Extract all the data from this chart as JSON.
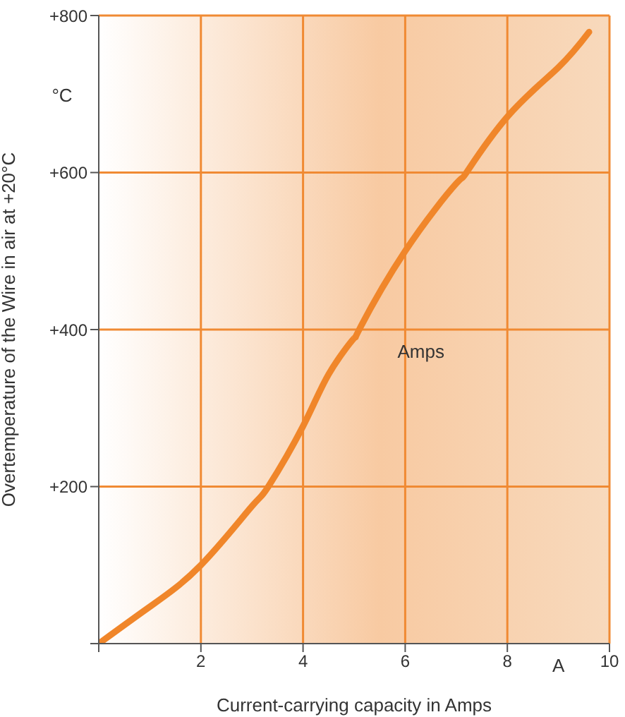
{
  "chart_data": {
    "type": "line",
    "xlabel": "Current-carrying capacity in Amps",
    "ylabel": "Overtemperature of the Wire in air at +20°C",
    "annotations": [
      "°C",
      "Amps",
      "A"
    ],
    "x": [
      0,
      1,
      2,
      3,
      3.32,
      4,
      4.5,
      5,
      5.1,
      6,
      7,
      7.2,
      8,
      9,
      9.6
    ],
    "series": [
      {
        "color": "#f0862a",
        "values": [
          0,
          47,
          100,
          175,
          200,
          277,
          343,
          389,
          400,
          500,
          586,
          600,
          671,
          734,
          779
        ]
      }
    ],
    "xlim": [
      0,
      10
    ],
    "xticks": [
      {
        "value": 0,
        "label": null
      },
      2,
      4,
      6,
      8,
      10
    ],
    "ylim": [
      0,
      800
    ],
    "yticks": [
      {
        "value": 0,
        "label": null
      },
      {
        "value": 200,
        "label": "+200"
      },
      {
        "value": 400,
        "label": "+400"
      },
      {
        "value": 600,
        "label": "+600"
      },
      {
        "value": 800,
        "label": "+800"
      }
    ],
    "grid": true,
    "marker": "none",
    "line_style": "solid"
  }
}
